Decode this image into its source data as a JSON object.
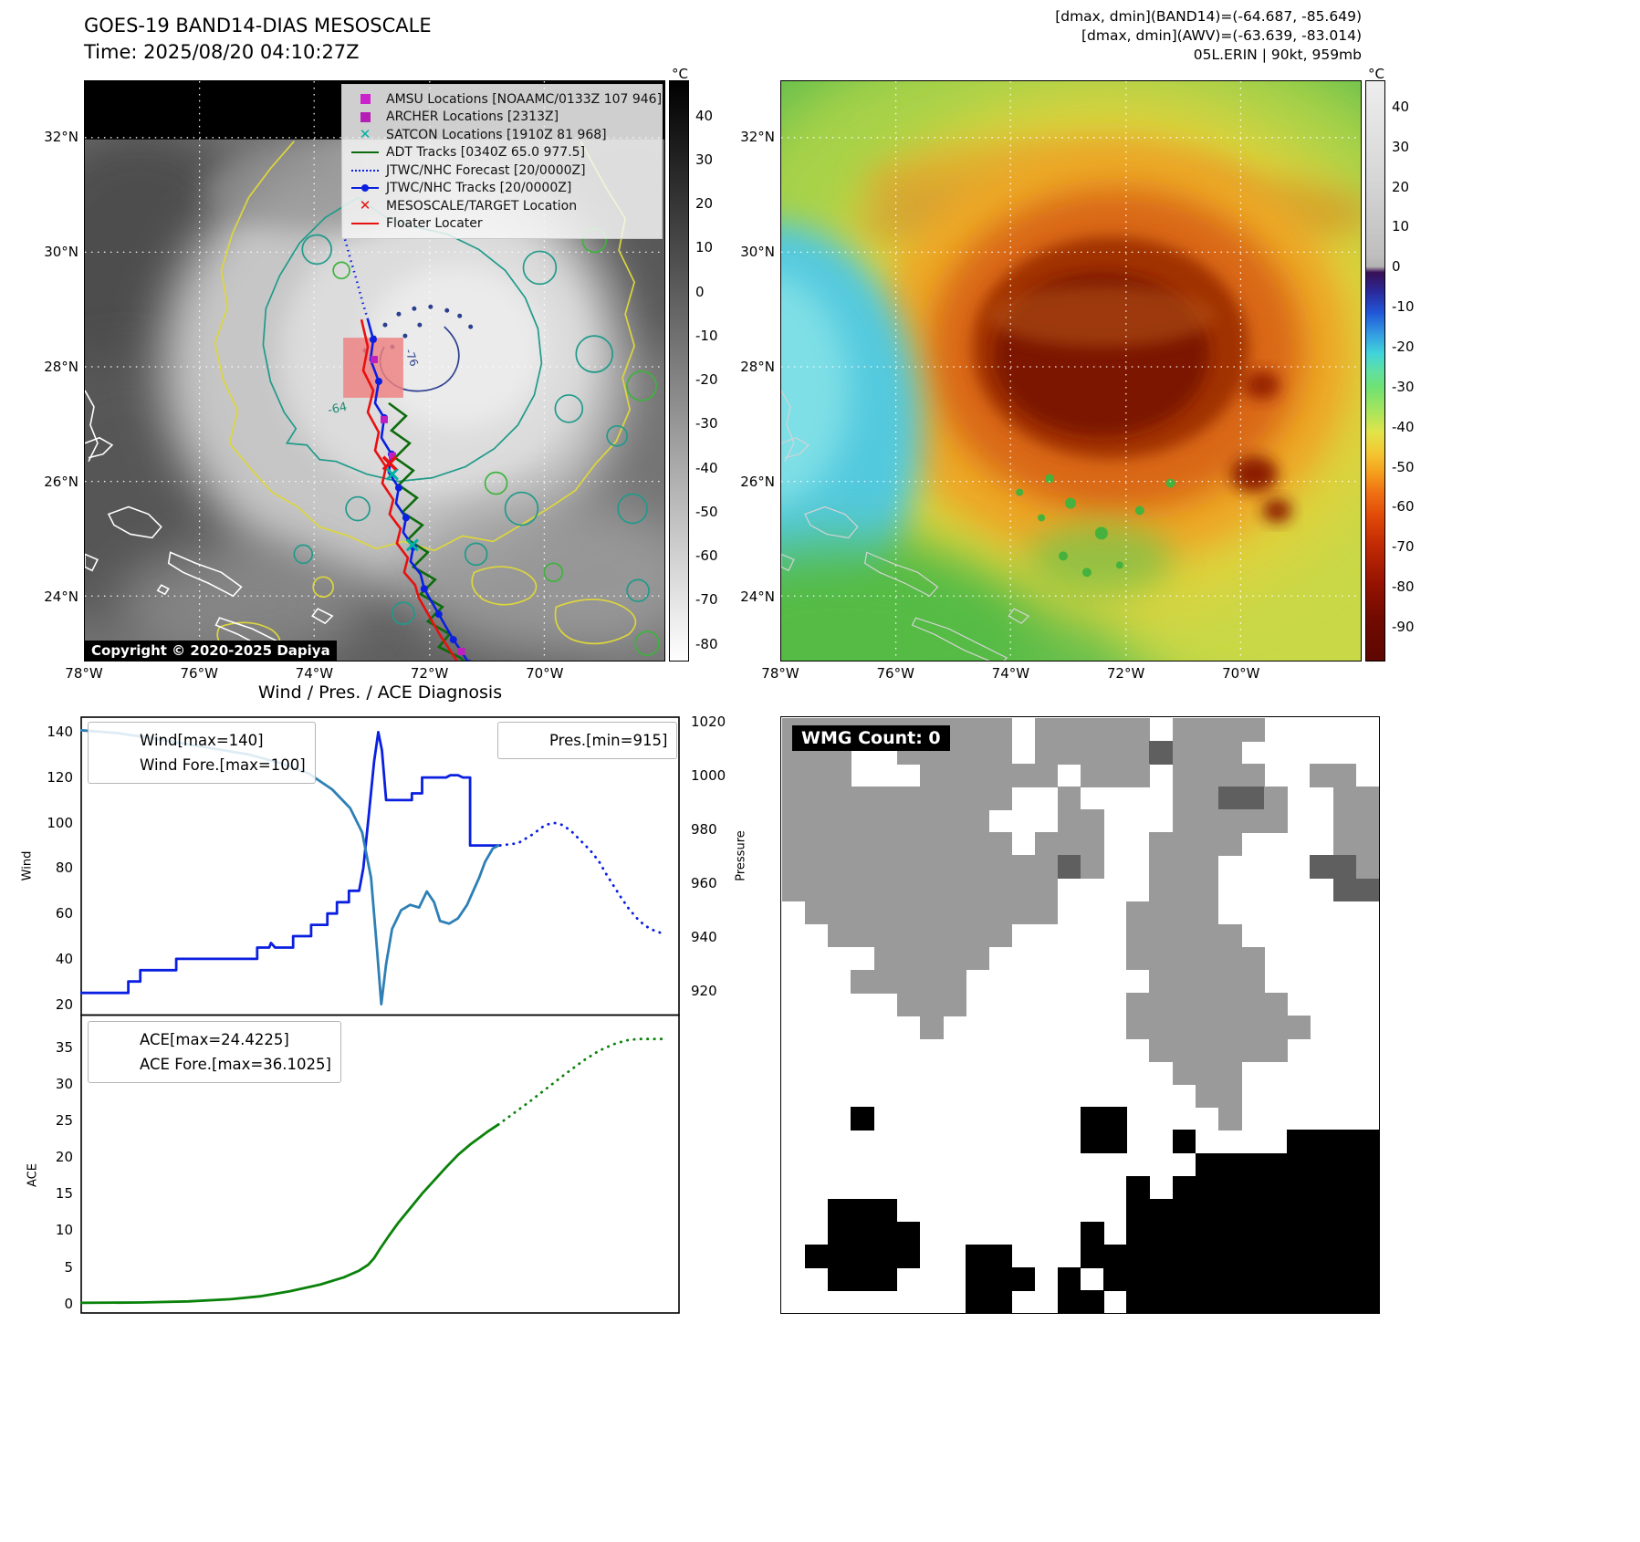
{
  "map1": {
    "title_line1": "GOES-19 BAND14-DIAS MESOSCALE",
    "title_line2": "Time: 2025/08/20 04:10:27Z",
    "copyright": "Copyright © 2020-2025 Dapiya",
    "colorbar": {
      "unit": "°C",
      "ticks": [
        40,
        30,
        20,
        10,
        0,
        -10,
        -20,
        -30,
        -40,
        -50,
        -60,
        -70,
        -80
      ]
    },
    "x_ticks": [
      "78°W",
      "76°W",
      "74°W",
      "72°W",
      "70°W"
    ],
    "y_ticks": [
      "32°N",
      "30°N",
      "28°N",
      "26°N",
      "24°N"
    ],
    "contour_labels": [
      "-64",
      "-76"
    ],
    "legend": [
      {
        "marker": "square",
        "color": "#cc22cc",
        "label": "AMSU Locations [NOAAMC/0133Z 107 946]"
      },
      {
        "marker": "square",
        "color": "#b51fb5",
        "label": "ARCHER Locations [2313Z]"
      },
      {
        "marker": "xmark",
        "color": "#00b2a2",
        "label": "SATCON Locations [1910Z 81 968]"
      },
      {
        "marker": "line",
        "color": "#0c6b0c",
        "label": "ADT Tracks [0340Z 65.0 977.5]"
      },
      {
        "marker": "dotted-line",
        "color": "#0a1fe0",
        "label": "JTWC/NHC Forecast [20/0000Z]"
      },
      {
        "marker": "line-dot",
        "color": "#0a1fe0",
        "label": "JTWC/NHC Tracks [20/0000Z]"
      },
      {
        "marker": "xmark",
        "color": "#e81010",
        "label": "MESOSCALE/TARGET Location"
      },
      {
        "marker": "line",
        "color": "#e81010",
        "label": "Floater Locater"
      }
    ]
  },
  "map2": {
    "header_lines": [
      "[dmax, dmin](BAND14)=(-64.687, -85.649)",
      "[dmax, dmin](AWV)=(-63.639, -83.014)",
      "05L.ERIN | 90kt, 959mb"
    ],
    "colorbar": {
      "unit": "°C",
      "ticks": [
        40,
        30,
        20,
        10,
        0,
        -10,
        -20,
        -30,
        -40,
        -50,
        -60,
        -70,
        -80,
        -90
      ]
    },
    "x_ticks": [
      "78°W",
      "76°W",
      "74°W",
      "72°W",
      "70°W"
    ],
    "y_ticks": [
      "32°N",
      "30°N",
      "28°N",
      "26°N",
      "24°N"
    ]
  },
  "charts": {
    "title": "Wind / Pres. / ACE Diagnosis"
  },
  "chart_data": [
    {
      "type": "line",
      "title": "Wind / Pres. / ACE Diagnosis",
      "left_axis": {
        "label": "Wind",
        "ticks": [
          140,
          120,
          100,
          80,
          60,
          40,
          20
        ],
        "ylim": [
          15,
          147
        ]
      },
      "right_axis": {
        "label": "Pressure",
        "ticks": [
          1020,
          1000,
          980,
          960,
          940,
          920
        ],
        "ylim": [
          910.8,
          1022.2
        ]
      },
      "grid": false,
      "legend_position": "upper-left and upper-right",
      "series": [
        {
          "name": "Wind[max=140]",
          "axis": "left",
          "style": "solid",
          "color": "#0a1fe0",
          "points": [
            [
              0.0,
              25
            ],
            [
              0.08,
              25
            ],
            [
              0.08,
              30
            ],
            [
              0.1,
              30
            ],
            [
              0.1,
              35
            ],
            [
              0.16,
              35
            ],
            [
              0.16,
              40
            ],
            [
              0.295,
              40
            ],
            [
              0.295,
              45
            ],
            [
              0.315,
              45
            ],
            [
              0.318,
              47
            ],
            [
              0.325,
              45
            ],
            [
              0.355,
              45
            ],
            [
              0.355,
              50
            ],
            [
              0.385,
              50
            ],
            [
              0.385,
              55
            ],
            [
              0.412,
              55
            ],
            [
              0.412,
              60
            ],
            [
              0.428,
              60
            ],
            [
              0.428,
              65
            ],
            [
              0.448,
              65
            ],
            [
              0.448,
              70
            ],
            [
              0.465,
              70
            ],
            [
              0.472,
              80
            ],
            [
              0.481,
              103
            ],
            [
              0.49,
              127
            ],
            [
              0.497,
              140
            ],
            [
              0.503,
              132
            ],
            [
              0.51,
              110
            ],
            [
              0.553,
              110
            ],
            [
              0.553,
              113
            ],
            [
              0.57,
              113
            ],
            [
              0.57,
              120
            ],
            [
              0.61,
              120
            ],
            [
              0.617,
              121
            ],
            [
              0.63,
              121
            ],
            [
              0.638,
              120
            ],
            [
              0.65,
              120
            ],
            [
              0.65,
              90
            ],
            [
              0.7,
              90
            ]
          ]
        },
        {
          "name": "Wind Fore.[max=100]",
          "axis": "left",
          "style": "dotted",
          "color": "#0a1fe0",
          "points": [
            [
              0.7,
              90
            ],
            [
              0.73,
              91
            ],
            [
              0.755,
              95
            ],
            [
              0.775,
              99
            ],
            [
              0.79,
              100
            ],
            [
              0.805,
              99
            ],
            [
              0.82,
              96
            ],
            [
              0.835,
              92
            ],
            [
              0.85,
              88
            ],
            [
              0.865,
              83
            ],
            [
              0.878,
              77
            ],
            [
              0.89,
              72
            ],
            [
              0.902,
              67
            ],
            [
              0.915,
              62
            ],
            [
              0.928,
              58
            ],
            [
              0.94,
              55
            ],
            [
              0.952,
              53
            ],
            [
              0.963,
              52
            ],
            [
              0.972,
              51
            ]
          ]
        },
        {
          "name": "Pres.[min=915]",
          "axis": "right",
          "style": "solid",
          "color": "#2d7fb5",
          "points": [
            [
              0.0,
              1017
            ],
            [
              0.06,
              1016
            ],
            [
              0.12,
              1014
            ],
            [
              0.2,
              1011
            ],
            [
              0.28,
              1008
            ],
            [
              0.33,
              1005
            ],
            [
              0.38,
              1001
            ],
            [
              0.42,
              995
            ],
            [
              0.45,
              988
            ],
            [
              0.47,
              979
            ],
            [
              0.485,
              962
            ],
            [
              0.495,
              935
            ],
            [
              0.502,
              915
            ],
            [
              0.51,
              930
            ],
            [
              0.52,
              943
            ],
            [
              0.535,
              950
            ],
            [
              0.55,
              952
            ],
            [
              0.565,
              951
            ],
            [
              0.578,
              957
            ],
            [
              0.59,
              953
            ],
            [
              0.6,
              946
            ],
            [
              0.615,
              945
            ],
            [
              0.63,
              947
            ],
            [
              0.645,
              952
            ],
            [
              0.655,
              957
            ],
            [
              0.665,
              962
            ],
            [
              0.675,
              968
            ],
            [
              0.688,
              973
            ],
            [
              0.697,
              974
            ]
          ]
        }
      ]
    },
    {
      "type": "line",
      "left_axis": {
        "label": "ACE",
        "ticks": [
          35,
          30,
          25,
          20,
          15,
          10,
          5,
          0
        ],
        "ylim": [
          -1.4,
          39.3
        ]
      },
      "grid": false,
      "legend_position": "upper-left",
      "series": [
        {
          "name": "ACE[max=24.4225]",
          "style": "solid",
          "color": "#0a820a",
          "points": [
            [
              0.0,
              0.1
            ],
            [
              0.1,
              0.15
            ],
            [
              0.18,
              0.3
            ],
            [
              0.25,
              0.6
            ],
            [
              0.3,
              1.0
            ],
            [
              0.35,
              1.7
            ],
            [
              0.4,
              2.6
            ],
            [
              0.44,
              3.6
            ],
            [
              0.465,
              4.5
            ],
            [
              0.48,
              5.3
            ],
            [
              0.49,
              6.2
            ],
            [
              0.5,
              7.5
            ],
            [
              0.515,
              9.3
            ],
            [
              0.53,
              11.0
            ],
            [
              0.55,
              13.0
            ],
            [
              0.57,
              15.0
            ],
            [
              0.59,
              16.8
            ],
            [
              0.61,
              18.6
            ],
            [
              0.63,
              20.3
            ],
            [
              0.65,
              21.7
            ],
            [
              0.665,
              22.6
            ],
            [
              0.68,
              23.5
            ],
            [
              0.697,
              24.42
            ]
          ]
        },
        {
          "name": "ACE Fore.[max=36.1025]",
          "style": "dotted",
          "color": "#0a820a",
          "points": [
            [
              0.697,
              24.42
            ],
            [
              0.72,
              25.8
            ],
            [
              0.75,
              27.6
            ],
            [
              0.78,
              29.5
            ],
            [
              0.81,
              31.4
            ],
            [
              0.84,
              33.2
            ],
            [
              0.865,
              34.5
            ],
            [
              0.89,
              35.4
            ],
            [
              0.91,
              35.9
            ],
            [
              0.93,
              36.1
            ],
            [
              0.955,
              36.1
            ],
            [
              0.972,
              36.1
            ]
          ]
        }
      ]
    }
  ],
  "wmg": {
    "label": "WMG Count: 0",
    "palette": {
      ".": "#ffffff",
      "g": "#9a9a9a",
      "d": "#5f5f5f",
      "k": "#000000"
    },
    "grid": [
      "gggggggggg.ggggg.gggg.....",
      "ggg..ggggg.gggggdggg......",
      "ggg...gggggg.ggg.gggg..gg.",
      "gggggggggg..g....ggddg..gg",
      "ggggggggg...gg...ggggg..gg",
      "gggggggggg.ggg..gggg....gg",
      "ggggggggggggdg..ggg....ddg",
      "gggggggggggg....ggg.....dd",
      ".ggggggggggg...gggg.......",
      "..gggggggg.....ggggg......",
      "....ggggg......gggggg.....",
      "...ggggg........ggggg.....",
      ".....ggg.......ggggggg....",
      "......g........gggggggg...",
      "................gggggg....",
      ".................ggg......",
      "..................gg......",
      "...k.........kk....g......",
      ".............kk..k....kkkk",
      "..................kkkkkkkk",
      "...............k.kkkkkkkkk",
      "..kkk..........kkkkkkkkkkk",
      "..kkkk.......k.kkkkkkkkkkk",
      ".kkkkk..kk...kkkkkkkkkkkkk",
      "..kkk...kkk.k.kkkkkkkkkkkk",
      "........kk..kk.kkkkkkkkkkk"
    ]
  }
}
